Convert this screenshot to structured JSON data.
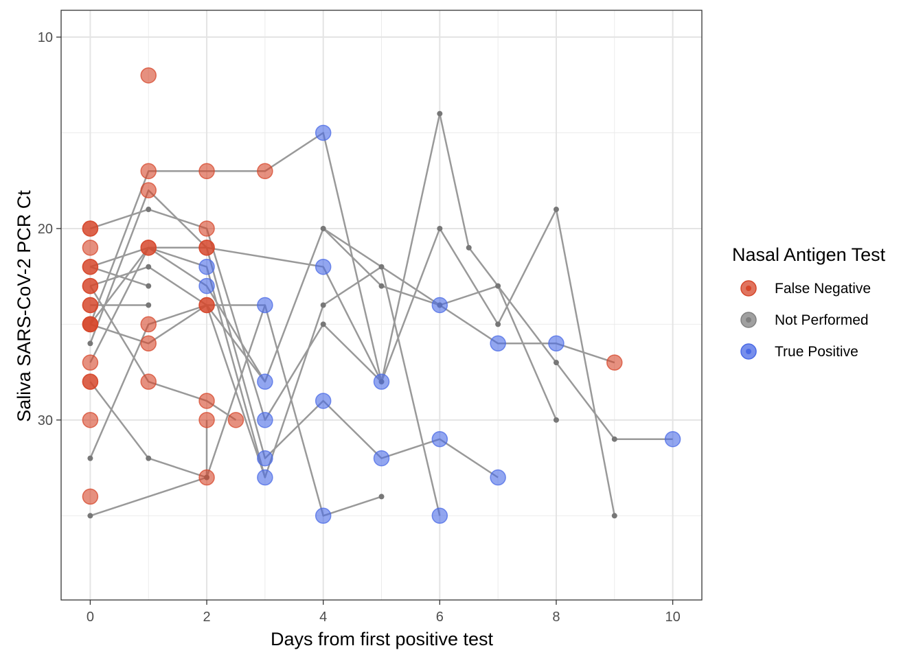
{
  "chart_data": {
    "type": "scatter",
    "xlabel": "Days from first positive test",
    "ylabel": "Saliva SARS-CoV-2 PCR Ct",
    "xlim": [
      -0.5,
      10.5
    ],
    "ylim": [
      8.6,
      39.4
    ],
    "y_reversed": true,
    "x_ticks": [
      0,
      2,
      4,
      6,
      8,
      10
    ],
    "x_tick_labels": [
      "0",
      "2",
      "4",
      "6",
      "8",
      "10"
    ],
    "y_ticks": [
      10,
      20,
      30
    ],
    "y_tick_labels": [
      "10",
      "20",
      "30"
    ],
    "grid": true,
    "legend": {
      "title": "Nasal Antigen Test",
      "position": "right",
      "entries": [
        {
          "label": "False Negative",
          "color": "#D6462A",
          "key": "false_negative"
        },
        {
          "label": "Not Performed",
          "color": "#808080",
          "key": "not_performed"
        },
        {
          "label": "True Positive",
          "color": "#4A6AE6",
          "key": "true_positive"
        }
      ]
    },
    "series_lines": [
      [
        [
          0,
          25
        ],
        [
          1,
          21
        ],
        [
          2,
          21
        ],
        [
          3,
          32
        ],
        [
          4,
          29
        ],
        [
          5,
          32
        ],
        [
          6,
          31
        ],
        [
          7,
          33
        ]
      ],
      [
        [
          0,
          25
        ],
        [
          1,
          17
        ],
        [
          2,
          17
        ],
        [
          3,
          17
        ],
        [
          4,
          15
        ],
        [
          5,
          28
        ]
      ],
      [
        [
          0,
          22
        ],
        [
          1,
          21
        ],
        [
          2,
          22
        ],
        [
          3,
          33
        ],
        [
          4,
          24
        ],
        [
          5,
          22
        ],
        [
          6,
          35
        ]
      ],
      [
        [
          0,
          20
        ],
        [
          1,
          19
        ],
        [
          2,
          20
        ],
        [
          3,
          30
        ],
        [
          4,
          25
        ],
        [
          5,
          28
        ],
        [
          6,
          20
        ],
        [
          7,
          25
        ],
        [
          8,
          19
        ],
        [
          9,
          35
        ]
      ],
      [
        [
          0,
          26
        ],
        [
          1,
          18
        ],
        [
          2,
          21
        ],
        [
          4,
          22
        ],
        [
          5,
          28
        ],
        [
          6,
          14
        ],
        [
          6.5,
          21
        ],
        [
          8,
          27
        ],
        [
          9,
          31
        ],
        [
          10,
          31
        ]
      ],
      [
        [
          0,
          27
        ],
        [
          1,
          21
        ],
        [
          2,
          23
        ],
        [
          3,
          28
        ],
        [
          4,
          20
        ],
        [
          5,
          23
        ],
        [
          6,
          24
        ],
        [
          7,
          26
        ],
        [
          8,
          26
        ],
        [
          9,
          27
        ]
      ],
      [
        [
          0,
          23
        ],
        [
          1,
          22
        ],
        [
          2,
          24
        ],
        [
          3,
          24
        ],
        [
          4,
          35
        ],
        [
          5,
          34
        ]
      ],
      [
        [
          0,
          24
        ],
        [
          1,
          24
        ]
      ],
      [
        [
          0,
          32
        ],
        [
          1,
          25
        ],
        [
          2,
          24
        ],
        [
          3,
          28
        ]
      ],
      [
        [
          0,
          28
        ],
        [
          1,
          32
        ],
        [
          2,
          33
        ],
        [
          2,
          30
        ]
      ],
      [
        [
          0,
          23
        ],
        [
          1,
          28
        ],
        [
          2,
          29
        ],
        [
          2.5,
          30
        ]
      ],
      [
        [
          0,
          25
        ],
        [
          1,
          26
        ],
        [
          2,
          24
        ],
        [
          3,
          33
        ]
      ],
      [
        [
          0,
          35
        ],
        [
          2,
          33
        ],
        [
          3,
          24
        ]
      ],
      [
        [
          0,
          22
        ],
        [
          1,
          23
        ]
      ],
      [
        [
          4,
          20
        ],
        [
          5,
          22
        ],
        [
          6,
          24
        ],
        [
          7,
          23
        ],
        [
          8,
          30
        ]
      ]
    ],
    "points": {
      "false_negative": [
        [
          0,
          20
        ],
        [
          0,
          20
        ],
        [
          0,
          21
        ],
        [
          0,
          22
        ],
        [
          0,
          22
        ],
        [
          0,
          23
        ],
        [
          0,
          23
        ],
        [
          0,
          24
        ],
        [
          0,
          24
        ],
        [
          0,
          25
        ],
        [
          0,
          25
        ],
        [
          0,
          25
        ],
        [
          0,
          27
        ],
        [
          0,
          28
        ],
        [
          0,
          28
        ],
        [
          0,
          30
        ],
        [
          0,
          34
        ],
        [
          1,
          12
        ],
        [
          1,
          17
        ],
        [
          1,
          18
        ],
        [
          1,
          21
        ],
        [
          1,
          21
        ],
        [
          1,
          25
        ],
        [
          1,
          26
        ],
        [
          1,
          28
        ],
        [
          2,
          17
        ],
        [
          2,
          20
        ],
        [
          2,
          21
        ],
        [
          2,
          21
        ],
        [
          2,
          24
        ],
        [
          2,
          24
        ],
        [
          2,
          29
        ],
        [
          2,
          30
        ],
        [
          2,
          33
        ],
        [
          2.5,
          30
        ],
        [
          3,
          17
        ],
        [
          9,
          27
        ]
      ],
      "not_performed": [
        [
          0,
          26
        ],
        [
          0,
          32
        ],
        [
          0,
          35
        ],
        [
          1,
          19
        ],
        [
          1,
          22
        ],
        [
          1,
          23
        ],
        [
          1,
          24
        ],
        [
          1,
          32
        ],
        [
          2,
          33
        ],
        [
          4,
          20
        ],
        [
          4,
          24
        ],
        [
          4,
          25
        ],
        [
          5,
          22
        ],
        [
          5,
          23
        ],
        [
          5,
          28
        ],
        [
          5,
          34
        ],
        [
          6,
          14
        ],
        [
          6,
          20
        ],
        [
          6,
          24
        ],
        [
          6.5,
          21
        ],
        [
          7,
          23
        ],
        [
          7,
          25
        ],
        [
          8,
          19
        ],
        [
          8,
          27
        ],
        [
          8,
          30
        ],
        [
          9,
          31
        ],
        [
          9,
          35
        ]
      ],
      "true_positive": [
        [
          2,
          22
        ],
        [
          2,
          23
        ],
        [
          3,
          24
        ],
        [
          3,
          28
        ],
        [
          3,
          30
        ],
        [
          3,
          32
        ],
        [
          3,
          33
        ],
        [
          4,
          15
        ],
        [
          4,
          22
        ],
        [
          4,
          29
        ],
        [
          4,
          35
        ],
        [
          5,
          28
        ],
        [
          5,
          32
        ],
        [
          6,
          24
        ],
        [
          6,
          31
        ],
        [
          6,
          35
        ],
        [
          7,
          26
        ],
        [
          7,
          33
        ],
        [
          8,
          26
        ],
        [
          10,
          31
        ]
      ]
    }
  }
}
